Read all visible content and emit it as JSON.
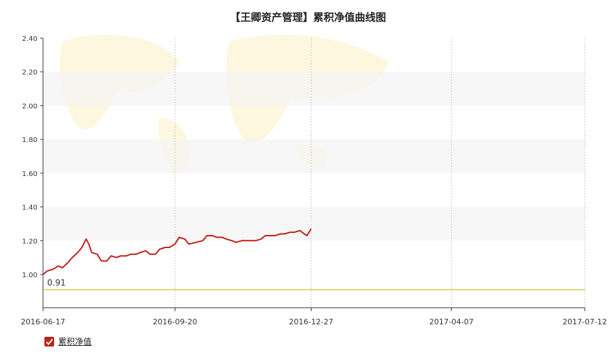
{
  "chart_data": {
    "type": "line",
    "title": "【王卿资产管理】累积净值曲线图",
    "xlabel": "",
    "ylabel": "",
    "ylim": [
      0.75,
      2.4
    ],
    "yticks": [
      "1.00",
      "1.20",
      "1.40",
      "1.60",
      "1.80",
      "2.00",
      "2.20",
      "2.40"
    ],
    "xticks": [
      "2016-06-17",
      "2016-09-20",
      "2016-12-27",
      "2017-04-07",
      "2017-07-12"
    ],
    "grid": "horizontal bands + dotted vertical lines",
    "legend": "bottom-left",
    "reference_line": {
      "value": 0.91,
      "label": "0.91",
      "color": "#c8c000"
    },
    "series": [
      {
        "name": "累积净值",
        "color": "#c0211b",
        "points": [
          [
            "2016-06-17",
            1.0
          ],
          [
            "2016-06-20",
            1.02
          ],
          [
            "2016-06-24",
            1.03
          ],
          [
            "2016-06-28",
            1.05
          ],
          [
            "2016-07-01",
            1.04
          ],
          [
            "2016-07-05",
            1.07
          ],
          [
            "2016-07-08",
            1.1
          ],
          [
            "2016-07-12",
            1.13
          ],
          [
            "2016-07-15",
            1.16
          ],
          [
            "2016-07-18",
            1.21
          ],
          [
            "2016-07-20",
            1.18
          ],
          [
            "2016-07-22",
            1.13
          ],
          [
            "2016-07-26",
            1.12
          ],
          [
            "2016-07-29",
            1.08
          ],
          [
            "2016-08-02",
            1.08
          ],
          [
            "2016-08-05",
            1.11
          ],
          [
            "2016-08-09",
            1.1
          ],
          [
            "2016-08-12",
            1.11
          ],
          [
            "2016-08-16",
            1.11
          ],
          [
            "2016-08-19",
            1.12
          ],
          [
            "2016-08-23",
            1.12
          ],
          [
            "2016-08-26",
            1.13
          ],
          [
            "2016-08-30",
            1.14
          ],
          [
            "2016-09-02",
            1.12
          ],
          [
            "2016-09-06",
            1.12
          ],
          [
            "2016-09-09",
            1.15
          ],
          [
            "2016-09-13",
            1.16
          ],
          [
            "2016-09-16",
            1.16
          ],
          [
            "2016-09-20",
            1.18
          ],
          [
            "2016-09-23",
            1.22
          ],
          [
            "2016-09-27",
            1.21
          ],
          [
            "2016-09-30",
            1.18
          ],
          [
            "2016-10-10",
            1.2
          ],
          [
            "2016-10-13",
            1.23
          ],
          [
            "2016-10-17",
            1.23
          ],
          [
            "2016-10-20",
            1.22
          ],
          [
            "2016-10-24",
            1.22
          ],
          [
            "2016-10-27",
            1.21
          ],
          [
            "2016-10-31",
            1.2
          ],
          [
            "2016-11-03",
            1.19
          ],
          [
            "2016-11-07",
            1.2
          ],
          [
            "2016-11-10",
            1.2
          ],
          [
            "2016-11-14",
            1.2
          ],
          [
            "2016-11-17",
            1.2
          ],
          [
            "2016-11-21",
            1.21
          ],
          [
            "2016-11-24",
            1.23
          ],
          [
            "2016-11-28",
            1.23
          ],
          [
            "2016-12-01",
            1.23
          ],
          [
            "2016-12-05",
            1.24
          ],
          [
            "2016-12-08",
            1.24
          ],
          [
            "2016-12-12",
            1.25
          ],
          [
            "2016-12-15",
            1.25
          ],
          [
            "2016-12-19",
            1.26
          ],
          [
            "2016-12-22",
            1.24
          ],
          [
            "2016-12-24",
            1.23
          ],
          [
            "2016-12-27",
            1.27
          ]
        ]
      }
    ]
  }
}
